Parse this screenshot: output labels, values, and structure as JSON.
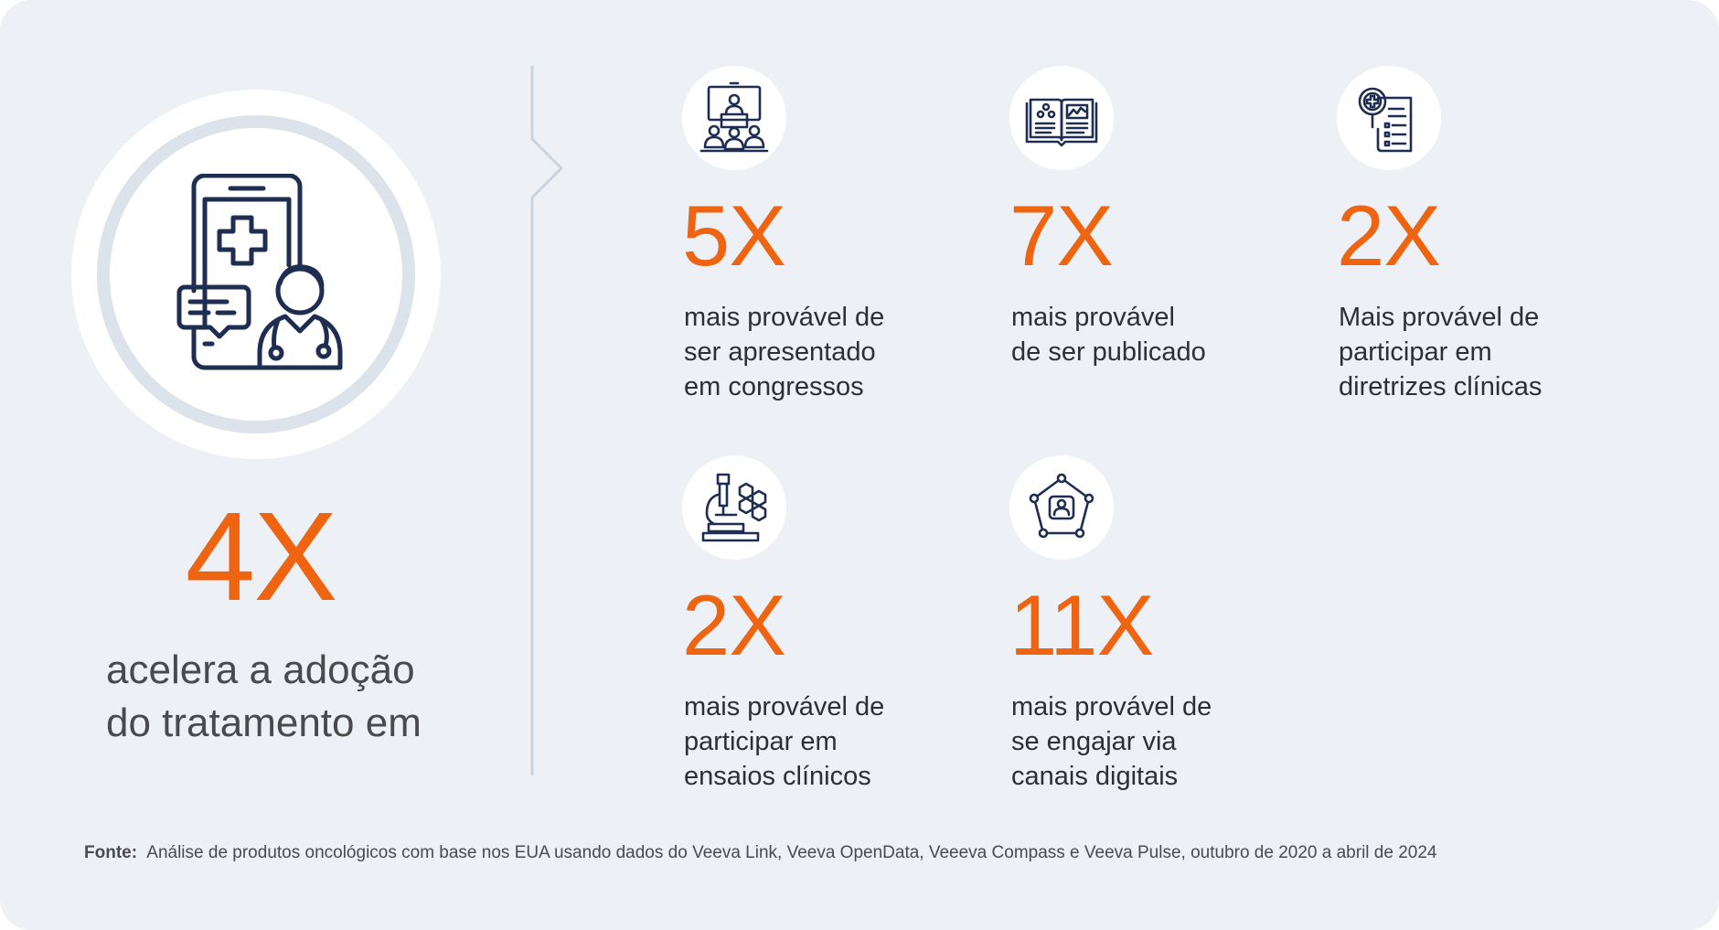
{
  "hero": {
    "value": "4X",
    "caption_lines": [
      "acelera a adoção",
      "do tratamento em"
    ],
    "icon": "telehealth-doctor-tablet-icon"
  },
  "stats": [
    {
      "icon": "conference-presentation-icon",
      "value": "5X",
      "lines": [
        "mais provável de",
        "ser apresentado",
        "em congressos"
      ]
    },
    {
      "icon": "open-journal-icon",
      "value": "7X",
      "lines": [
        "mais provável",
        "de ser publicado"
      ]
    },
    {
      "icon": "clinical-guideline-document-icon",
      "value": "2X",
      "lines": [
        "Mais provável de",
        "participar em",
        "diretrizes clínicas"
      ]
    },
    {
      "icon": "microscope-molecule-icon",
      "value": "2X",
      "lines": [
        "mais provável de",
        "participar em",
        "ensaios clínicos"
      ]
    },
    {
      "icon": "digital-network-person-icon",
      "value": "11X",
      "lines": [
        "mais provável de",
        "se engajar via",
        "canais digitais"
      ]
    }
  ],
  "source": {
    "label": "Fonte:",
    "text": "Análise de produtos oncológicos com base nos EUA usando dados do Veeva Link, Veeva OpenData, Veeeva Compass e Veeva Pulse, outubro de 2020 a abril de 2024"
  },
  "colors": {
    "accent": "#ef6411",
    "icon_stroke": "#1f2d52",
    "background": "#edf0f5",
    "divider": "#c9d3de"
  }
}
